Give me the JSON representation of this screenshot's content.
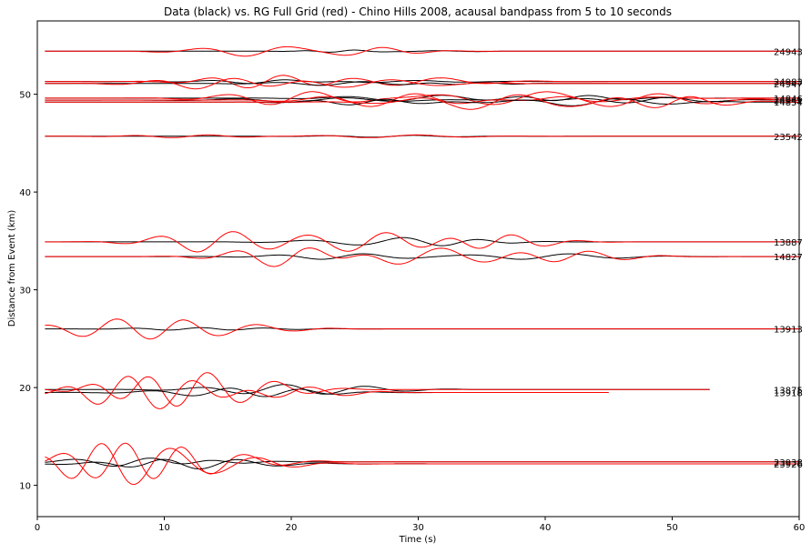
{
  "chart_data": {
    "type": "line",
    "title": "Data (black) vs. RG Full Grid (red) - Chino Hills 2008, acausal bandpass from 5 to 10 seconds",
    "xlabel": "Time (s)",
    "ylabel": "Distance from Event (km)",
    "xlim": [
      0,
      60
    ],
    "ylim": [
      6.8,
      57.5
    ],
    "xticks": [
      0,
      10,
      20,
      30,
      40,
      50,
      60
    ],
    "yticks": [
      10,
      20,
      30,
      40,
      50
    ],
    "grid": false,
    "legend": "none",
    "colors": {
      "data": "#000000",
      "synthetic": "#ff0000"
    },
    "series_kinds": [
      "data",
      "synthetic"
    ],
    "stations": [
      {
        "label": "24943",
        "offset": 54.4,
        "x_start": 0.6,
        "x_end": 60,
        "data_waves": [
          [
            4,
            0.1,
            24
          ],
          [
            6.5,
            0.06,
            30
          ]
        ],
        "syn_waves": [
          [
            7,
            0.55,
            18
          ],
          [
            5.5,
            0.35,
            26
          ]
        ]
      },
      {
        "label": "24983",
        "offset": 51.3,
        "x_start": 0.6,
        "x_end": 60,
        "data_waves": [
          [
            6,
            0.2,
            18
          ],
          [
            8,
            0.12,
            28
          ]
        ],
        "syn_waves": [
          [
            6,
            0.7,
            18
          ],
          [
            7.5,
            0.4,
            30
          ]
        ]
      },
      {
        "label": "24947",
        "offset": 51.1,
        "x_start": 0.6,
        "x_end": 60,
        "data_waves": [
          [
            7,
            0.2,
            24
          ],
          [
            5,
            0.12,
            34
          ]
        ],
        "syn_waves": [
          [
            6.5,
            0.6,
            14
          ],
          [
            8,
            0.4,
            26
          ]
        ]
      },
      {
        "label": "14846",
        "offset": 49.6,
        "x_start": 0.6,
        "x_end": 60,
        "data_waves": [
          [
            8,
            0.3,
            30
          ],
          [
            6,
            0.3,
            42
          ]
        ],
        "syn_waves": [
          [
            7,
            0.7,
            20
          ],
          [
            9,
            0.7,
            38
          ]
        ]
      },
      {
        "label": "24941",
        "offset": 49.4,
        "x_start": 0.6,
        "x_end": 60,
        "data_waves": [
          [
            9,
            0.25,
            22
          ],
          [
            7,
            0.3,
            48
          ]
        ],
        "syn_waves": [
          [
            7.5,
            0.7,
            28
          ],
          [
            8,
            0.7,
            47
          ]
        ]
      },
      {
        "label": "14854",
        "offset": 49.2,
        "x_start": 0.6,
        "x_end": 60,
        "data_waves": [
          [
            6,
            0.3,
            26
          ],
          [
            8,
            0.4,
            44
          ]
        ],
        "syn_waves": [
          [
            8,
            0.8,
            36
          ],
          [
            6,
            0.6,
            50
          ]
        ]
      },
      {
        "label": "23542",
        "offset": 45.7,
        "x_start": 0.6,
        "x_end": 60,
        "data_waves": [
          [
            7,
            0.1,
            28
          ]
        ],
        "syn_waves": [
          [
            6,
            0.15,
            12
          ],
          [
            8,
            0.15,
            28
          ]
        ]
      },
      {
        "label": "13887",
        "offset": 34.9,
        "x_start": 0.6,
        "x_end": 60,
        "data_waves": [
          [
            8,
            0.3,
            27
          ],
          [
            6,
            0.3,
            33
          ]
        ],
        "syn_waves": [
          [
            6,
            1.1,
            14
          ],
          [
            6.5,
            1.0,
            26
          ],
          [
            5.5,
            0.8,
            36
          ]
        ]
      },
      {
        "label": "14827",
        "offset": 33.4,
        "x_start": 0.6,
        "x_end": 60,
        "data_waves": [
          [
            7,
            0.3,
            24
          ],
          [
            8,
            0.3,
            40
          ]
        ],
        "syn_waves": [
          [
            6,
            1.1,
            20
          ],
          [
            7.5,
            0.9,
            30
          ],
          [
            6,
            0.6,
            42
          ]
        ]
      },
      {
        "label": "13913",
        "offset": 26.0,
        "x_start": 0.6,
        "x_end": 60,
        "data_waves": [
          [
            6,
            0.15,
            12
          ],
          [
            6,
            0.12,
            16
          ]
        ],
        "syn_waves": [
          [
            6,
            0.7,
            5
          ],
          [
            5.5,
            0.7,
            10
          ],
          [
            6,
            0.4,
            16
          ]
        ]
      },
      {
        "label": "13875",
        "offset": 19.8,
        "x_start": 0.6,
        "x_end": 53,
        "data_waves": [
          [
            7,
            0.4,
            18
          ],
          [
            7,
            0.3,
            24
          ]
        ],
        "syn_waves": [
          [
            5,
            1.4,
            8
          ],
          [
            6,
            1.4,
            12
          ],
          [
            6,
            0.7,
            17
          ]
        ]
      },
      {
        "label": "13918",
        "offset": 19.5,
        "x_start": 0.6,
        "x_end": 45,
        "data_waves": [
          [
            7,
            0.3,
            14
          ],
          [
            6,
            0.4,
            19
          ]
        ],
        "syn_waves": [
          [
            5,
            1.1,
            6
          ],
          [
            5.5,
            1.2,
            11
          ],
          [
            6,
            0.6,
            20
          ]
        ]
      },
      {
        "label": "23938",
        "offset": 12.4,
        "x_start": 0.6,
        "x_end": 60,
        "data_waves": [
          [
            7,
            0.5,
            8
          ],
          [
            6,
            0.4,
            12
          ]
        ],
        "syn_waves": [
          [
            5.5,
            1.6,
            6
          ],
          [
            5,
            1.5,
            10
          ],
          [
            6,
            0.6,
            15
          ]
        ]
      },
      {
        "label": "23926",
        "offset": 12.2,
        "x_start": 0.6,
        "x_end": 60,
        "data_waves": [
          [
            6,
            0.4,
            9
          ],
          [
            7,
            0.4,
            14
          ]
        ],
        "syn_waves": [
          [
            5,
            1.5,
            4
          ],
          [
            6,
            1.4,
            9
          ],
          [
            6,
            0.6,
            16
          ]
        ]
      }
    ]
  }
}
